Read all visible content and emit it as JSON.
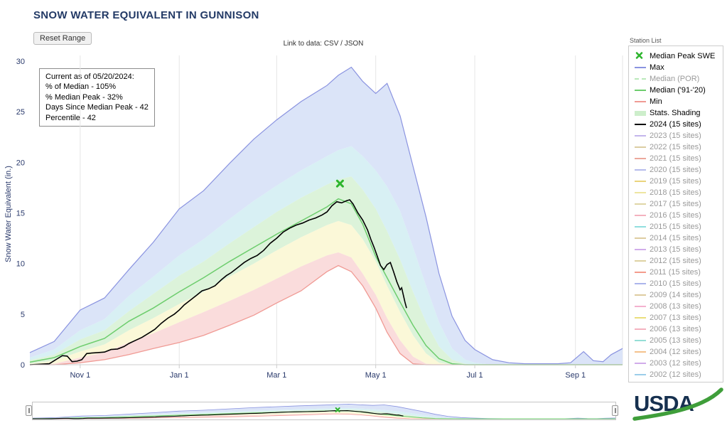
{
  "header": {
    "title": "SNOW WATER EQUIVALENT IN GUNNISON",
    "reset_label": "Reset Range",
    "link_label": "Link to data: CSV / JSON"
  },
  "info_box": {
    "lines": [
      "Current as of 05/20/2024:",
      "% of Median - 105%",
      "% Median Peak - 32%",
      "Days Since Median Peak - 42",
      "Percentile - 42"
    ]
  },
  "station_list": {
    "label": "Station List",
    "items": [
      {
        "label": "Median Peak SWE",
        "marker": "x",
        "color": "#2db52d",
        "text_color": "#000000"
      },
      {
        "label": "Max",
        "marker": "line",
        "color": "#8a93e0",
        "text_color": "#000000"
      },
      {
        "label": "Median (POR)",
        "marker": "dash",
        "color": "#b9e8b9",
        "text_color": "#9a9a9a"
      },
      {
        "label": "Median ('91-'20)",
        "marker": "line",
        "color": "#6dcd6d",
        "text_color": "#000000"
      },
      {
        "label": "Min",
        "marker": "line",
        "color": "#f09a94",
        "text_color": "#000000"
      },
      {
        "label": "Stats. Shading",
        "marker": "band",
        "color": "#cdeecb",
        "text_color": "#000000"
      },
      {
        "label": "2024 (15 sites)",
        "marker": "line",
        "color": "#000000",
        "text_color": "#000000"
      },
      {
        "label": "2023 (15 sites)",
        "marker": "line",
        "color": "#c3b6ec",
        "text_color": "#9a9a9a"
      },
      {
        "label": "2022 (15 sites)",
        "marker": "line",
        "color": "#dbcda2",
        "text_color": "#9a9a9a"
      },
      {
        "label": "2021 (15 sites)",
        "marker": "line",
        "color": "#eca89c",
        "text_color": "#9a9a9a"
      },
      {
        "label": "2020 (15 sites)",
        "marker": "line",
        "color": "#b5bbec",
        "text_color": "#9a9a9a"
      },
      {
        "label": "2019 (15 sites)",
        "marker": "line",
        "color": "#ead47c",
        "text_color": "#9a9a9a"
      },
      {
        "label": "2018 (15 sites)",
        "marker": "line",
        "color": "#eee6a0",
        "text_color": "#9a9a9a"
      },
      {
        "label": "2017 (15 sites)",
        "marker": "line",
        "color": "#dfd6a6",
        "text_color": "#9a9a9a"
      },
      {
        "label": "2016 (15 sites)",
        "marker": "line",
        "color": "#f4b2bf",
        "text_color": "#9a9a9a"
      },
      {
        "label": "2015 (15 sites)",
        "marker": "line",
        "color": "#91dede",
        "text_color": "#9a9a9a"
      },
      {
        "label": "2014 (15 sites)",
        "marker": "line",
        "color": "#decca0",
        "text_color": "#9a9a9a"
      },
      {
        "label": "2013 (15 sites)",
        "marker": "line",
        "color": "#d1acea",
        "text_color": "#9a9a9a"
      },
      {
        "label": "2012 (15 sites)",
        "marker": "line",
        "color": "#ded2a2",
        "text_color": "#9a9a9a"
      },
      {
        "label": "2011 (15 sites)",
        "marker": "line",
        "color": "#f49c8c",
        "text_color": "#9a9a9a"
      },
      {
        "label": "2010 (15 sites)",
        "marker": "line",
        "color": "#acb5ec",
        "text_color": "#9a9a9a"
      },
      {
        "label": "2009 (14 sites)",
        "marker": "line",
        "color": "#decca0",
        "text_color": "#9a9a9a"
      },
      {
        "label": "2008 (13 sites)",
        "marker": "line",
        "color": "#f4b2cf",
        "text_color": "#9a9a9a"
      },
      {
        "label": "2007 (13 sites)",
        "marker": "line",
        "color": "#eade7c",
        "text_color": "#9a9a9a"
      },
      {
        "label": "2006 (13 sites)",
        "marker": "line",
        "color": "#f4b2bf",
        "text_color": "#9a9a9a"
      },
      {
        "label": "2005 (13 sites)",
        "marker": "line",
        "color": "#95ded6",
        "text_color": "#9a9a9a"
      },
      {
        "label": "2004 (12 sites)",
        "marker": "line",
        "color": "#f4c28c",
        "text_color": "#9a9a9a"
      },
      {
        "label": "2003 (12 sites)",
        "marker": "line",
        "color": "#d1acea",
        "text_color": "#9a9a9a"
      },
      {
        "label": "2002 (12 sites)",
        "marker": "line",
        "color": "#9ccdea",
        "text_color": "#9a9a9a"
      }
    ]
  },
  "usda_logo_text": "USDA",
  "chart_data": {
    "type": "area",
    "title": "SNOW WATER EQUIVALENT IN GUNNISON",
    "ylabel": "Snow Water Equivalent (in.)",
    "ylim": [
      0,
      30
    ],
    "yticks": [
      0,
      5,
      10,
      15,
      20,
      25,
      30
    ],
    "xlim": [
      0,
      365
    ],
    "xticks": [
      {
        "day": 31,
        "label": "Nov 1"
      },
      {
        "day": 92,
        "label": "Jan 1"
      },
      {
        "day": 152,
        "label": "Mar 1"
      },
      {
        "day": 213,
        "label": "May 1"
      },
      {
        "day": 274,
        "label": "Jul 1"
      },
      {
        "day": 336,
        "label": "Sep 1"
      }
    ],
    "days": [
      0,
      15,
      31,
      46,
      61,
      76,
      92,
      107,
      123,
      138,
      152,
      167,
      183,
      190,
      198,
      205,
      213,
      220,
      228,
      236,
      244,
      252,
      260,
      268,
      274,
      285,
      295,
      305,
      315,
      325,
      333,
      341,
      347,
      353,
      358,
      365
    ],
    "series": {
      "max": [
        1.2,
        2.3,
        5.4,
        6.6,
        9.4,
        12.1,
        15.4,
        17.2,
        19.9,
        22.3,
        24.2,
        26.0,
        27.6,
        28.6,
        29.4,
        28.0,
        26.8,
        27.8,
        24.6,
        19.6,
        14.6,
        9.0,
        4.8,
        2.4,
        1.5,
        0.5,
        0.2,
        0.1,
        0.1,
        0.1,
        0.2,
        1.3,
        0.4,
        0.3,
        1.0,
        1.6
      ],
      "p90": [
        0.7,
        1.5,
        3.4,
        4.5,
        6.8,
        8.7,
        10.8,
        12.4,
        14.4,
        16.2,
        17.7,
        19.2,
        20.6,
        21.2,
        21.6,
        20.6,
        19.2,
        17.6,
        15.2,
        11.6,
        7.8,
        4.2,
        1.6,
        0.5,
        0.2,
        0,
        0,
        0,
        0,
        0,
        0,
        0,
        0,
        0,
        0,
        0
      ],
      "p70": [
        0.45,
        1.0,
        2.5,
        3.4,
        5.3,
        7.0,
        8.8,
        10.2,
        12.0,
        13.6,
        15.1,
        16.5,
        17.8,
        18.3,
        18.6,
        17.3,
        15.4,
        13.2,
        10.4,
        7.2,
        4.2,
        1.8,
        0.5,
        0.1,
        0,
        0,
        0,
        0,
        0,
        0,
        0,
        0,
        0,
        0,
        0,
        0
      ],
      "median": [
        0.25,
        0.7,
        1.8,
        2.6,
        4.3,
        5.6,
        7.2,
        8.6,
        10.2,
        11.6,
        12.9,
        14.2,
        15.6,
        16.4,
        15.9,
        13.9,
        10.7,
        8.6,
        6.2,
        3.9,
        1.9,
        0.6,
        0.1,
        0,
        0,
        0,
        0,
        0,
        0,
        0,
        0,
        0,
        0,
        0,
        0,
        0
      ],
      "p30": [
        0.1,
        0.4,
        1.3,
        2.0,
        3.4,
        4.6,
        6.0,
        7.2,
        8.7,
        10.0,
        11.3,
        12.6,
        13.8,
        14.2,
        13.8,
        12.4,
        10.2,
        7.8,
        5.2,
        2.9,
        1.1,
        0.2,
        0,
        0,
        0,
        0,
        0,
        0,
        0,
        0,
        0,
        0,
        0,
        0,
        0,
        0
      ],
      "p10": [
        0,
        0.1,
        0.7,
        1.2,
        2.2,
        3.1,
        4.2,
        5.2,
        6.3,
        7.4,
        8.5,
        9.7,
        10.8,
        11.1,
        10.6,
        9.0,
        6.9,
        4.6,
        2.4,
        0.8,
        0.1,
        0,
        0,
        0,
        0,
        0,
        0,
        0,
        0,
        0,
        0,
        0,
        0,
        0,
        0,
        0
      ],
      "min": [
        0,
        0,
        0.2,
        0.5,
        1.0,
        1.6,
        2.2,
        2.9,
        3.9,
        4.9,
        6.1,
        7.3,
        9.2,
        9.8,
        9.2,
        7.8,
        5.6,
        3.2,
        1.1,
        0.1,
        0,
        0,
        0,
        0,
        0,
        0,
        0,
        0,
        0,
        0,
        0,
        0,
        0,
        0,
        0,
        0
      ]
    },
    "bands": [
      {
        "upper": "max",
        "lower": "p90",
        "color_key": "max_fill"
      },
      {
        "upper": "p90",
        "lower": "p70",
        "color_key": "band_90"
      },
      {
        "upper": "p70",
        "lower": "p30",
        "color_key": "band_stats"
      },
      {
        "upper": "p30",
        "lower": "p10",
        "color_key": "band_30"
      },
      {
        "upper": "p10",
        "lower": "min",
        "color_key": "band_min"
      }
    ],
    "series_2024": [
      [
        0,
        0
      ],
      [
        6,
        0.05
      ],
      [
        12,
        0.1
      ],
      [
        17,
        0.6
      ],
      [
        20,
        0.9
      ],
      [
        23,
        0.85
      ],
      [
        26,
        0.3
      ],
      [
        29,
        0.35
      ],
      [
        32,
        0.5
      ],
      [
        35,
        1.1
      ],
      [
        38,
        1.15
      ],
      [
        42,
        1.2
      ],
      [
        46,
        1.25
      ],
      [
        50,
        1.5
      ],
      [
        54,
        1.55
      ],
      [
        58,
        1.8
      ],
      [
        61,
        2.1
      ],
      [
        65,
        2.4
      ],
      [
        69,
        2.7
      ],
      [
        73,
        3.1
      ],
      [
        77,
        3.5
      ],
      [
        81,
        4.1
      ],
      [
        85,
        4.6
      ],
      [
        89,
        5.0
      ],
      [
        92,
        5.4
      ],
      [
        95,
        5.9
      ],
      [
        99,
        6.4
      ],
      [
        103,
        6.9
      ],
      [
        106,
        7.3
      ],
      [
        110,
        7.5
      ],
      [
        114,
        7.8
      ],
      [
        118,
        8.4
      ],
      [
        121,
        8.8
      ],
      [
        124,
        9.1
      ],
      [
        128,
        9.6
      ],
      [
        132,
        10.1
      ],
      [
        136,
        10.5
      ],
      [
        140,
        10.8
      ],
      [
        144,
        11.3
      ],
      [
        148,
        12.0
      ],
      [
        152,
        12.5
      ],
      [
        156,
        13.1
      ],
      [
        160,
        13.5
      ],
      [
        164,
        13.8
      ],
      [
        168,
        14.0
      ],
      [
        172,
        14.3
      ],
      [
        176,
        14.5
      ],
      [
        180,
        14.8
      ],
      [
        183,
        15.1
      ],
      [
        186,
        15.7
      ],
      [
        189,
        16.1
      ],
      [
        192,
        16.0
      ],
      [
        195,
        16.2
      ],
      [
        197,
        16.3
      ],
      [
        199,
        15.9
      ],
      [
        202,
        15.0
      ],
      [
        205,
        14.3
      ],
      [
        208,
        13.3
      ],
      [
        210,
        12.4
      ],
      [
        212,
        11.6
      ],
      [
        214,
        10.7
      ],
      [
        216,
        9.8
      ],
      [
        218,
        9.4
      ],
      [
        220,
        9.9
      ],
      [
        222,
        10.1
      ],
      [
        224,
        9.2
      ],
      [
        226,
        8.2
      ],
      [
        228,
        7.4
      ],
      [
        229,
        7.6
      ],
      [
        230,
        6.9
      ],
      [
        231,
        6.2
      ],
      [
        232,
        5.6
      ]
    ],
    "median_peak": {
      "day": 191,
      "value": 17.9
    },
    "colors": {
      "max_line": "#8a93e0",
      "max_fill": "#dbe4f8",
      "band_90": "#d8f0f4",
      "band_stats": "#dcf3da",
      "band_30": "#fbf8d8",
      "band_min": "#fadcdc",
      "min_line": "#f09a94",
      "median_line": "#6dcd6d",
      "line_2024": "#000000",
      "marker": "#2db52d",
      "grid": "#e6e6e6",
      "axis": "#cccccc",
      "axis_text": "#29396b"
    }
  }
}
